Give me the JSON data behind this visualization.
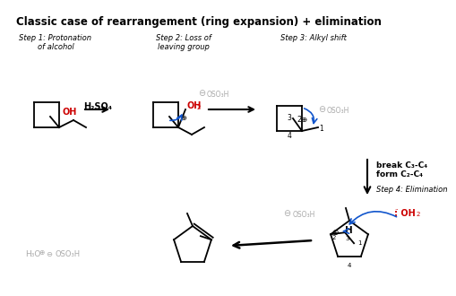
{
  "title": "Classic case of rearrangement (ring expansion) + elimination",
  "title_fontsize": 8.5,
  "bg_color": "#ffffff",
  "step1_label": "Step 1: Protonation\nof alcohol",
  "step2_label": "Step 2: Loss of\nleaving group",
  "step3_label": "Step 3: Alkyl shift",
  "step4_label": "Step 4: Elimination",
  "rearrange_label": "break C₃-C₄\nform C₂-C₄",
  "h2so4_label": "H₂SO₄",
  "oso3h_color": "#aaaaaa",
  "curved_arrow_color": "#1155cc",
  "oh_color": "#cc0000",
  "gray_color": "#888888"
}
